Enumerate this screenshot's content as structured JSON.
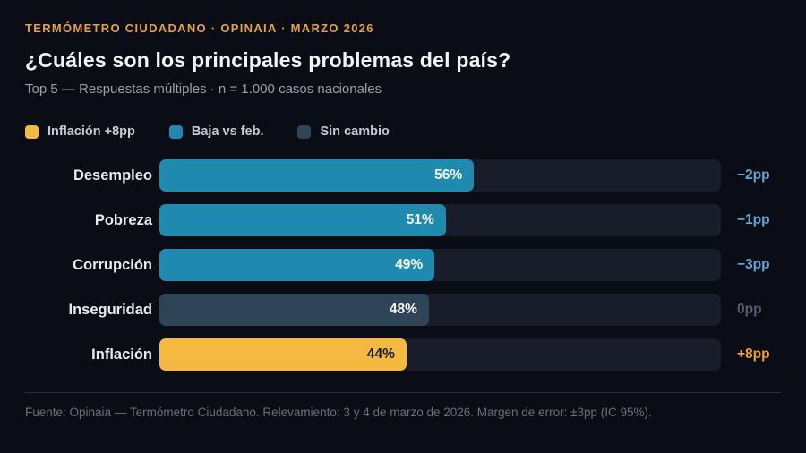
{
  "header": {
    "eyebrow": "TERMÓMETRO CIUDADANO · OPINAIA · MARZO 2026",
    "title": "¿Cuáles son los principales problemas del país?",
    "subtitle": "Top 5 — Respuestas múltiples · n = 1.000 casos nacionales"
  },
  "legend": [
    {
      "label": "Inflación +8pp",
      "color": "#f5b942"
    },
    {
      "label": "Baja vs feb.",
      "color": "#2089b0"
    },
    {
      "label": "Sin cambio",
      "color": "#2e4557"
    }
  ],
  "chart_data": {
    "type": "bar",
    "orientation": "horizontal",
    "title": "¿Cuáles son los principales problemas del país?",
    "subtitle": "Top 5 — Respuestas múltiples · n = 1.000 casos nacionales",
    "categories": [
      "Desempleo",
      "Pobreza",
      "Corrupción",
      "Inseguridad",
      "Inflación"
    ],
    "values": [
      56,
      51,
      49,
      48,
      44
    ],
    "value_labels": [
      "56%",
      "51%",
      "49%",
      "48%",
      "44%"
    ],
    "changes": [
      "−2pp",
      "−1pp",
      "−3pp",
      "0pp",
      "+8pp"
    ],
    "bar_colors": [
      "#2089b0",
      "#2089b0",
      "#2089b0",
      "#2e4557",
      "#f5b942"
    ],
    "value_text_colors": [
      "#f5f7f9",
      "#f5f7f9",
      "#f5f7f9",
      "#f5f7f9",
      "#171b24"
    ],
    "change_colors": [
      "#5fa8d3",
      "#5fa8d3",
      "#5fa8d3",
      "#545d6e",
      "#f2a32f"
    ],
    "xlim": [
      0,
      100
    ],
    "grid": false,
    "legend_position": "top",
    "track_color": "#191d29"
  },
  "footer": {
    "source": "Fuente: Opinaia — Termómetro Ciudadano. Relevamiento: 3 y 4 de marzo de 2026. Margen de error: ±3pp (IC 95%)."
  },
  "theme": {
    "background": "#0a0d15",
    "eyebrow_color": "#e9a23b",
    "title_color": "#f3f4f6",
    "subtitle_color": "#99a0ab",
    "divider_color": "#262b35",
    "source_color": "#69707c"
  }
}
